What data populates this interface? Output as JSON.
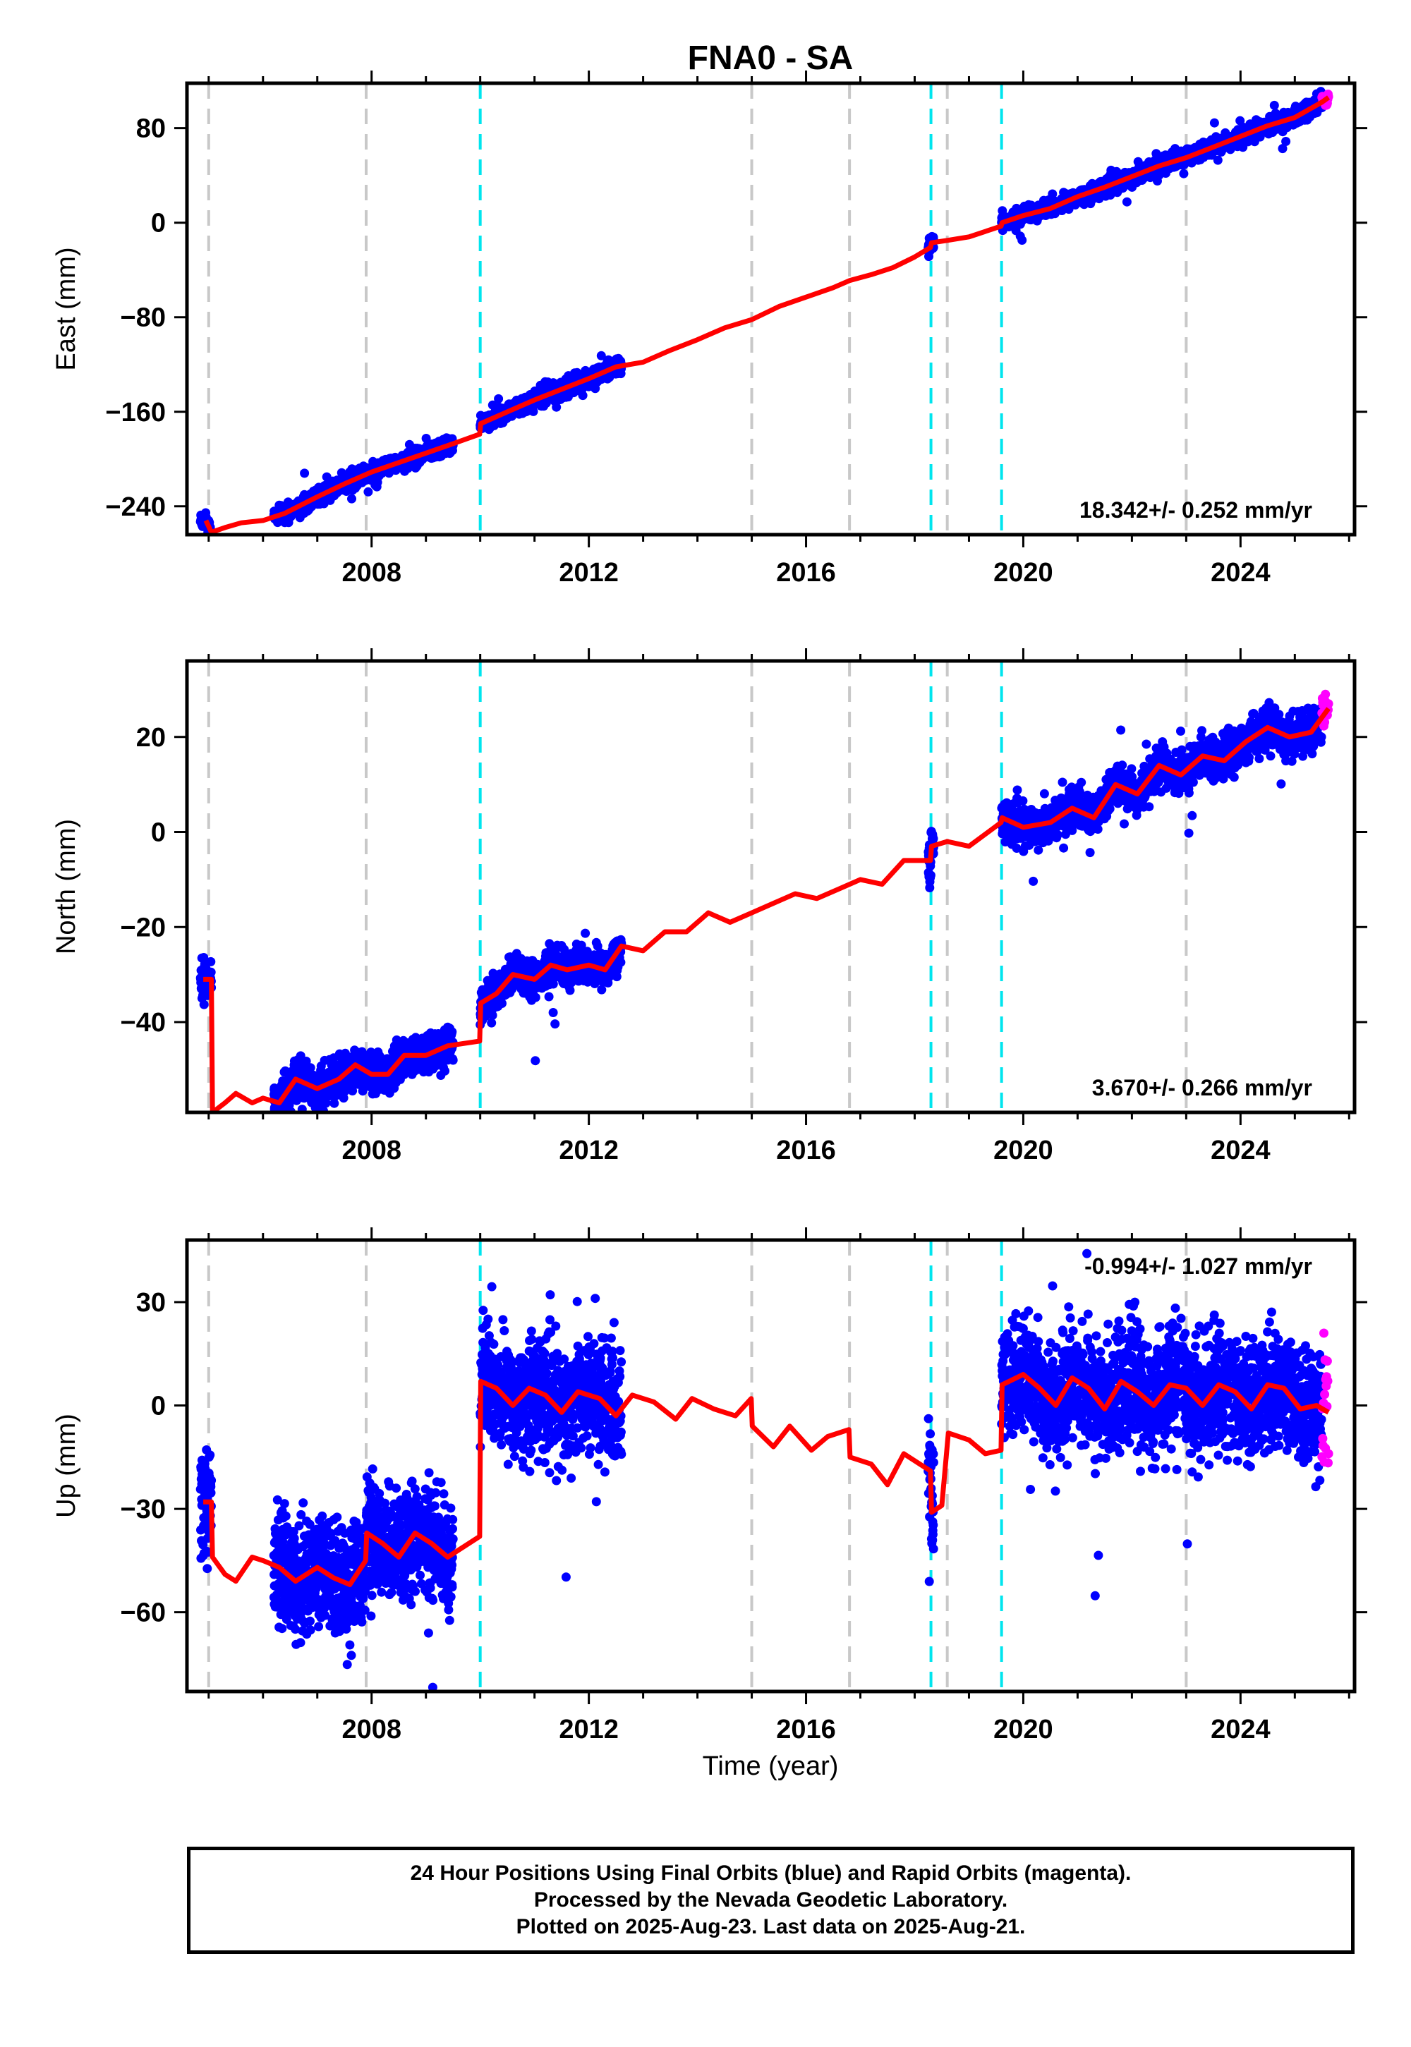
{
  "title": "FNA0 - SA",
  "xlabel": "Time (year)",
  "colors": {
    "final": "#0000ff",
    "rapid": "#ff00ff",
    "model": "#ff0000",
    "break_gray": "#c8c8c8",
    "break_cyan": "#00e5ee",
    "frame": "#000000"
  },
  "footer": {
    "line1": "24 Hour Positions Using Final Orbits (blue) and Rapid Orbits (magenta).",
    "line2": "Processed by the Nevada Geodetic Laboratory.",
    "line3": "Plotted on 2025-Aug-23. Last data on 2025-Aug-21."
  },
  "chart_data": [
    {
      "type": "scatter",
      "component": "east",
      "ylabel": "East (mm)",
      "rate": "18.342+/- 0.252 mm/yr",
      "xlim": [
        2004.6,
        2026.1
      ],
      "ylim": [
        -264,
        118
      ],
      "xticks": [
        2008,
        2012,
        2016,
        2020,
        2024
      ],
      "yticks": [
        -240,
        -160,
        -80,
        0,
        80
      ],
      "gray_breaks": [
        2005.0,
        2007.9,
        2015.0,
        2016.8,
        2018.6,
        2023.0
      ],
      "cyan_breaks": [
        2010.0,
        2018.3,
        2019.6
      ],
      "data_segments": [
        [
          2004.85,
          2005.05
        ],
        [
          2006.2,
          2009.5
        ],
        [
          2010.0,
          2012.6
        ],
        [
          2018.25,
          2018.35
        ],
        [
          2019.6,
          2025.5
        ]
      ],
      "rapid_segment": [
        2025.5,
        2025.62
      ],
      "model": [
        [
          2004.95,
          -252
        ],
        [
          2005.05,
          -262
        ],
        [
          2005.3,
          -258
        ],
        [
          2005.6,
          -254
        ],
        [
          2006.0,
          -252
        ],
        [
          2006.4,
          -246
        ],
        [
          2007.0,
          -232
        ],
        [
          2007.5,
          -221
        ],
        [
          2008.0,
          -211
        ],
        [
          2008.5,
          -203
        ],
        [
          2009.0,
          -195
        ],
        [
          2009.5,
          -187
        ],
        [
          2009.99,
          -179
        ],
        [
          2010.01,
          -170
        ],
        [
          2010.5,
          -160
        ],
        [
          2011.0,
          -150
        ],
        [
          2011.5,
          -141
        ],
        [
          2012.0,
          -132
        ],
        [
          2012.5,
          -122
        ],
        [
          2013.0,
          -118
        ],
        [
          2013.5,
          -108
        ],
        [
          2014.0,
          -99
        ],
        [
          2014.5,
          -89
        ],
        [
          2015.0,
          -82
        ],
        [
          2015.5,
          -71
        ],
        [
          2016.0,
          -63
        ],
        [
          2016.5,
          -55
        ],
        [
          2016.8,
          -49
        ],
        [
          2017.2,
          -44
        ],
        [
          2017.6,
          -38
        ],
        [
          2018.0,
          -29
        ],
        [
          2018.29,
          -21
        ],
        [
          2018.31,
          -17
        ],
        [
          2018.6,
          -15
        ],
        [
          2019.0,
          -12
        ],
        [
          2019.59,
          -3
        ],
        [
          2019.61,
          0
        ],
        [
          2020.0,
          6
        ],
        [
          2020.5,
          12
        ],
        [
          2021.0,
          22
        ],
        [
          2021.5,
          30
        ],
        [
          2022.0,
          39
        ],
        [
          2022.5,
          48
        ],
        [
          2023.0,
          55
        ],
        [
          2023.5,
          64
        ],
        [
          2024.0,
          73
        ],
        [
          2024.5,
          82
        ],
        [
          2025.0,
          89
        ],
        [
          2025.5,
          102
        ],
        [
          2025.62,
          106
        ]
      ]
    },
    {
      "type": "scatter",
      "component": "north",
      "ylabel": "North (mm)",
      "rate": "3.670+/- 0.266 mm/yr",
      "xlim": [
        2004.6,
        2026.1
      ],
      "ylim": [
        -59,
        36
      ],
      "xticks": [
        2008,
        2012,
        2016,
        2020,
        2024
      ],
      "yticks": [
        -40,
        -20,
        0,
        20
      ],
      "gray_breaks": [
        2005.0,
        2007.9,
        2015.0,
        2016.8,
        2018.6,
        2023.0
      ],
      "cyan_breaks": [
        2010.0,
        2018.3,
        2019.6
      ],
      "data_segments": [
        [
          2004.85,
          2005.05
        ],
        [
          2006.2,
          2009.5
        ],
        [
          2010.0,
          2012.6
        ],
        [
          2018.25,
          2018.35
        ],
        [
          2019.6,
          2025.5
        ]
      ],
      "rapid_segment": [
        2025.5,
        2025.62
      ],
      "model": [
        [
          2004.9,
          -31
        ],
        [
          2005.05,
          -31
        ],
        [
          2005.07,
          -59
        ],
        [
          2005.3,
          -57
        ],
        [
          2005.5,
          -55
        ],
        [
          2005.8,
          -57
        ],
        [
          2006.0,
          -56
        ],
        [
          2006.3,
          -57
        ],
        [
          2006.6,
          -52
        ],
        [
          2007.0,
          -54
        ],
        [
          2007.4,
          -52
        ],
        [
          2007.7,
          -49
        ],
        [
          2008.0,
          -51
        ],
        [
          2008.3,
          -51
        ],
        [
          2008.6,
          -47
        ],
        [
          2009.0,
          -47
        ],
        [
          2009.4,
          -45
        ],
        [
          2009.99,
          -44
        ],
        [
          2010.01,
          -36
        ],
        [
          2010.3,
          -34
        ],
        [
          2010.6,
          -30
        ],
        [
          2011.0,
          -31
        ],
        [
          2011.3,
          -28
        ],
        [
          2011.6,
          -29
        ],
        [
          2012.0,
          -28
        ],
        [
          2012.3,
          -29
        ],
        [
          2012.6,
          -24
        ],
        [
          2013.0,
          -25
        ],
        [
          2013.4,
          -21
        ],
        [
          2013.8,
          -21
        ],
        [
          2014.2,
          -17
        ],
        [
          2014.6,
          -19
        ],
        [
          2015.0,
          -17
        ],
        [
          2015.4,
          -15
        ],
        [
          2015.8,
          -13
        ],
        [
          2016.2,
          -14
        ],
        [
          2016.6,
          -12
        ],
        [
          2017.0,
          -10
        ],
        [
          2017.4,
          -11
        ],
        [
          2017.8,
          -6
        ],
        [
          2018.29,
          -6
        ],
        [
          2018.31,
          -3
        ],
        [
          2018.6,
          -2
        ],
        [
          2019.0,
          -3
        ],
        [
          2019.59,
          2
        ],
        [
          2019.61,
          3
        ],
        [
          2020.0,
          1
        ],
        [
          2020.5,
          2
        ],
        [
          2020.9,
          5
        ],
        [
          2021.3,
          3
        ],
        [
          2021.7,
          10
        ],
        [
          2022.1,
          8
        ],
        [
          2022.5,
          14
        ],
        [
          2022.9,
          12
        ],
        [
          2023.3,
          16
        ],
        [
          2023.7,
          15
        ],
        [
          2024.1,
          19
        ],
        [
          2024.5,
          22
        ],
        [
          2024.9,
          20
        ],
        [
          2025.3,
          21
        ],
        [
          2025.62,
          26
        ]
      ]
    },
    {
      "type": "scatter",
      "component": "up",
      "ylabel": "Up (mm)",
      "rate": "-0.994+/- 1.027 mm/yr",
      "xlim": [
        2004.6,
        2026.1
      ],
      "ylim": [
        -83,
        48
      ],
      "xticks": [
        2008,
        2012,
        2016,
        2020,
        2024
      ],
      "yticks": [
        -60,
        -30,
        0,
        30
      ],
      "gray_breaks": [
        2005.0,
        2007.9,
        2015.0,
        2016.8,
        2018.6,
        2023.0
      ],
      "cyan_breaks": [
        2010.0,
        2018.3,
        2019.6
      ],
      "data_segments": [
        [
          2004.85,
          2005.05
        ],
        [
          2006.2,
          2009.5
        ],
        [
          2010.0,
          2012.6
        ],
        [
          2018.25,
          2018.35
        ],
        [
          2019.6,
          2025.5
        ]
      ],
      "rapid_segment": [
        2025.5,
        2025.62
      ],
      "model": [
        [
          2004.9,
          -28
        ],
        [
          2005.05,
          -28
        ],
        [
          2005.07,
          -44
        ],
        [
          2005.3,
          -49
        ],
        [
          2005.5,
          -51
        ],
        [
          2005.8,
          -44
        ],
        [
          2006.0,
          -45
        ],
        [
          2006.3,
          -47
        ],
        [
          2006.6,
          -51
        ],
        [
          2007.0,
          -47
        ],
        [
          2007.3,
          -50
        ],
        [
          2007.6,
          -52
        ],
        [
          2007.89,
          -45
        ],
        [
          2007.91,
          -37
        ],
        [
          2008.2,
          -40
        ],
        [
          2008.5,
          -44
        ],
        [
          2008.8,
          -37
        ],
        [
          2009.1,
          -40
        ],
        [
          2009.4,
          -44
        ],
        [
          2009.99,
          -38
        ],
        [
          2010.01,
          7
        ],
        [
          2010.3,
          5
        ],
        [
          2010.6,
          0
        ],
        [
          2010.9,
          5
        ],
        [
          2011.2,
          3
        ],
        [
          2011.5,
          -2
        ],
        [
          2011.8,
          4
        ],
        [
          2012.2,
          2
        ],
        [
          2012.5,
          -3
        ],
        [
          2012.8,
          3
        ],
        [
          2013.2,
          1
        ],
        [
          2013.6,
          -4
        ],
        [
          2013.9,
          2
        ],
        [
          2014.3,
          -1
        ],
        [
          2014.7,
          -3
        ],
        [
          2014.99,
          2
        ],
        [
          2015.01,
          -6
        ],
        [
          2015.4,
          -12
        ],
        [
          2015.7,
          -6
        ],
        [
          2016.1,
          -13
        ],
        [
          2016.4,
          -9
        ],
        [
          2016.79,
          -7
        ],
        [
          2016.81,
          -15
        ],
        [
          2017.2,
          -17
        ],
        [
          2017.5,
          -23
        ],
        [
          2017.8,
          -14
        ],
        [
          2018.29,
          -19
        ],
        [
          2018.31,
          -31
        ],
        [
          2018.5,
          -29
        ],
        [
          2018.62,
          -8
        ],
        [
          2019.0,
          -10
        ],
        [
          2019.3,
          -14
        ],
        [
          2019.59,
          -13
        ],
        [
          2019.61,
          6
        ],
        [
          2020.0,
          9
        ],
        [
          2020.3,
          5
        ],
        [
          2020.6,
          0
        ],
        [
          2020.9,
          8
        ],
        [
          2021.2,
          5
        ],
        [
          2021.5,
          -1
        ],
        [
          2021.8,
          7
        ],
        [
          2022.1,
          4
        ],
        [
          2022.4,
          0
        ],
        [
          2022.7,
          6
        ],
        [
          2023.0,
          5
        ],
        [
          2023.3,
          0
        ],
        [
          2023.6,
          6
        ],
        [
          2023.9,
          4
        ],
        [
          2024.2,
          -1
        ],
        [
          2024.5,
          6
        ],
        [
          2024.8,
          5
        ],
        [
          2025.1,
          -1
        ],
        [
          2025.4,
          0
        ],
        [
          2025.62,
          -2
        ]
      ]
    }
  ]
}
